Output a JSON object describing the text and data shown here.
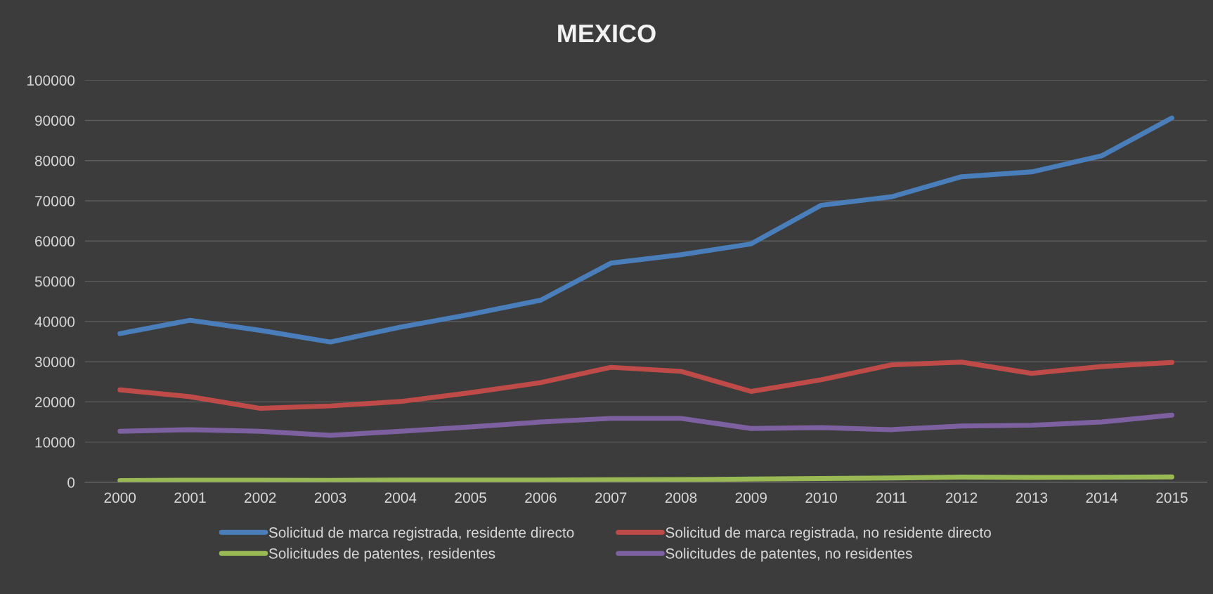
{
  "chart_data": {
    "type": "line",
    "title": "MEXICO",
    "categories": [
      "2000",
      "2001",
      "2002",
      "2003",
      "2004",
      "2005",
      "2006",
      "2007",
      "2008",
      "2009",
      "2010",
      "2011",
      "2012",
      "2013",
      "2014",
      "2015"
    ],
    "series": [
      {
        "name": "Solicitud de marca registrada, residente directo",
        "color": "#4a7ebb",
        "values": [
          37000,
          40300,
          37800,
          34900,
          38600,
          41800,
          45300,
          54500,
          56600,
          59300,
          68900,
          71000,
          76000,
          77200,
          81200,
          90600
        ]
      },
      {
        "name": "Solicitud de marca registrada, no residente directo",
        "color": "#be4b48",
        "values": [
          23000,
          21300,
          18400,
          19000,
          20100,
          22300,
          24800,
          28600,
          27600,
          22600,
          25500,
          29200,
          29900,
          27100,
          28800,
          29800
        ]
      },
      {
        "name": "Solicitudes de patentes, residentes",
        "color": "#98b954",
        "values": [
          450,
          530,
          530,
          470,
          560,
          580,
          570,
          630,
          680,
          820,
          950,
          1070,
          1290,
          1210,
          1250,
          1360
        ]
      },
      {
        "name": "Solicitudes de patentes, no residentes",
        "color": "#7d60a0",
        "values": [
          12700,
          13100,
          12700,
          11700,
          12700,
          13800,
          15000,
          15900,
          15900,
          13400,
          13600,
          13100,
          14000,
          14200,
          15000,
          16700
        ]
      }
    ],
    "ylim": [
      0,
      100000
    ],
    "yticks": [
      0,
      10000,
      20000,
      30000,
      40000,
      50000,
      60000,
      70000,
      80000,
      90000,
      100000
    ],
    "grid": "y",
    "legend": "bottom",
    "marker": "none",
    "line_style": "solid"
  }
}
